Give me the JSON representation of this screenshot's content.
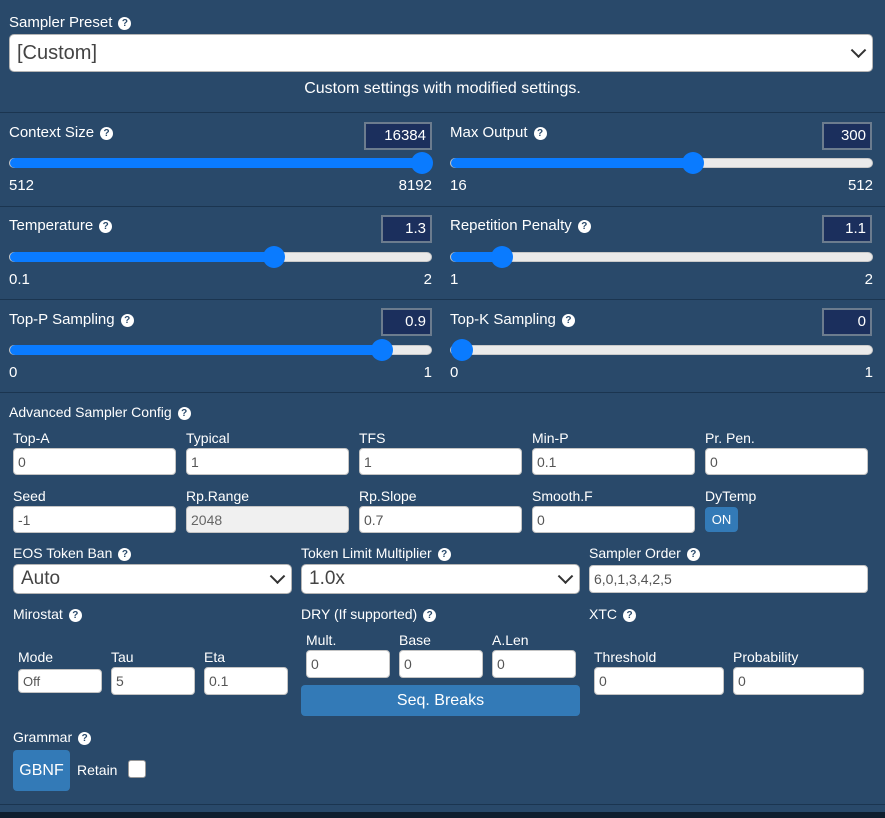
{
  "sampler_preset": {
    "label": "Sampler Preset",
    "value": "[Custom]",
    "description": "Custom settings with modified settings."
  },
  "sliders": {
    "context_size": {
      "label": "Context Size",
      "value": "16384",
      "min": "512",
      "max": "8192",
      "fraction": 1.0
    },
    "max_output": {
      "label": "Max Output",
      "value": "300",
      "min": "16",
      "max": "512",
      "fraction": 0.575
    },
    "temperature": {
      "label": "Temperature",
      "value": "1.3",
      "min": "0.1",
      "max": "2",
      "fraction": 0.63
    },
    "repetition_penalty": {
      "label": "Repetition Penalty",
      "value": "1.1",
      "min": "1",
      "max": "2",
      "fraction": 0.1
    },
    "top_p": {
      "label": "Top-P Sampling",
      "value": "0.9",
      "min": "0",
      "max": "1",
      "fraction": 0.9
    },
    "top_k": {
      "label": "Top-K Sampling",
      "value": "0",
      "min": "0",
      "max": "1",
      "fraction": 0.0
    }
  },
  "advanced": {
    "title": "Advanced Sampler Config",
    "row1": [
      {
        "label": "Top-A",
        "value": "0"
      },
      {
        "label": "Typical",
        "value": "1"
      },
      {
        "label": "TFS",
        "value": "1"
      },
      {
        "label": "Min-P",
        "value": "0.1"
      },
      {
        "label": "Pr. Pen.",
        "value": "0"
      }
    ],
    "row2": [
      {
        "label": "Seed",
        "value": "-1"
      },
      {
        "label": "Rp.Range",
        "value": "2048"
      },
      {
        "label": "Rp.Slope",
        "value": "0.7"
      },
      {
        "label": "Smooth.F",
        "value": "0"
      }
    ],
    "dytemp": {
      "label": "DyTemp",
      "button": "ON"
    },
    "eos_token_ban": {
      "label": "EOS Token Ban",
      "value": "Auto"
    },
    "token_limit_multiplier": {
      "label": "Token Limit Multiplier",
      "value": "1.0x"
    },
    "sampler_order": {
      "label": "Sampler Order",
      "value": "6,0,1,3,4,2,5"
    },
    "mirostat": {
      "label": "Mirostat",
      "mode_label": "Mode",
      "mode_value": "Off",
      "tau_label": "Tau",
      "tau_value": "5",
      "eta_label": "Eta",
      "eta_value": "0.1"
    },
    "dry": {
      "label": "DRY (If supported)",
      "mult_label": "Mult.",
      "mult_value": "0",
      "base_label": "Base",
      "base_value": "0",
      "alen_label": "A.Len",
      "alen_value": "0",
      "seq_breaks": "Seq. Breaks"
    },
    "xtc": {
      "label": "XTC",
      "threshold_label": "Threshold",
      "threshold_value": "0",
      "probability_label": "Probability",
      "probability_value": "0"
    },
    "grammar": {
      "label": "Grammar",
      "button": "GBNF",
      "retain_label": "Retain"
    }
  },
  "colors": {
    "background": "#29496a",
    "accent": "#0a7bff",
    "button": "#337ab7",
    "value_box": "#1b2f5d"
  }
}
